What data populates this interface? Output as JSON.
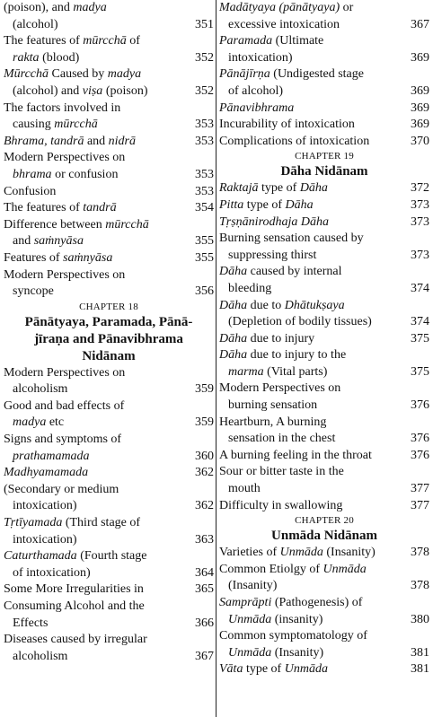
{
  "left": [
    {
      "type": "entry",
      "lines": [
        "(poison), and <i>madya</i>",
        "(alcohol)"
      ],
      "page": "351"
    },
    {
      "type": "entry",
      "lines": [
        "The features of <i>mūrcchā</i> of",
        "<i>rakta</i> (blood)"
      ],
      "page": "352"
    },
    {
      "type": "entry",
      "lines": [
        "<i>Mūrcchā</i> Caused by <i>madya</i>",
        "(alcohol) and <i>viṣa</i> (poison)"
      ],
      "page": "352"
    },
    {
      "type": "entry",
      "lines": [
        "The factors involved in",
        "causing <i>mūrcchā</i>"
      ],
      "page": "353"
    },
    {
      "type": "entry",
      "lines": [
        "<i>Bhrama, tandrā</i> and <i>nidrā</i>"
      ],
      "page": "353"
    },
    {
      "type": "entry",
      "lines": [
        "Modern Perspectives on",
        "<i>bhrama</i> or confusion"
      ],
      "page": "353"
    },
    {
      "type": "entry",
      "lines": [
        "Confusion"
      ],
      "page": "353"
    },
    {
      "type": "entry",
      "lines": [
        "The features of <i>tandrā</i>"
      ],
      "page": "354"
    },
    {
      "type": "entry",
      "lines": [
        "Difference between <i>mūrcchā</i>",
        "and <i>saṁnyāsa</i>"
      ],
      "page": "355"
    },
    {
      "type": "entry",
      "lines": [
        "Features of <i>saṁnyāsa</i>"
      ],
      "page": "355"
    },
    {
      "type": "entry",
      "lines": [
        "Modern Perspectives on",
        "syncope"
      ],
      "page": "356"
    },
    {
      "type": "heading",
      "chapter": "CHAPTER 18",
      "title": "Pānātyaya, Paramada, Pānā-<br>jīraṇa and Pānavibhrama<br>Nidānam"
    },
    {
      "type": "entry",
      "lines": [
        "Modern Perspectives on",
        "alcoholism"
      ],
      "page": "359"
    },
    {
      "type": "entry",
      "lines": [
        "Good and bad effects of",
        "<i>madya</i> etc"
      ],
      "page": "359"
    },
    {
      "type": "entry",
      "lines": [
        "Signs and symptoms of",
        "<i>prathamamada</i>"
      ],
      "page": "360"
    },
    {
      "type": "entry",
      "lines": [
        "<i>Madhyamamada</i>"
      ],
      "page": "362"
    },
    {
      "type": "entry",
      "lines": [
        "(Secondary or medium",
        "intoxication)"
      ],
      "page": "362"
    },
    {
      "type": "entry",
      "lines": [
        "<i>Tṛtīyamada</i> (Third stage of",
        "intoxication)"
      ],
      "page": "363"
    },
    {
      "type": "entry",
      "lines": [
        "<i>Caturthamada</i> (Fourth stage",
        "of intoxication)"
      ],
      "page": "364"
    },
    {
      "type": "entry",
      "lines": [
        "Some More Irregularities in"
      ],
      "page": "365"
    },
    {
      "type": "entry",
      "lines": [
        "Consuming Alcohol and the",
        "Effects"
      ],
      "page": "366"
    },
    {
      "type": "entry",
      "lines": [
        "Diseases caused by irregular",
        "alcoholism"
      ],
      "page": "367"
    }
  ],
  "right": [
    {
      "type": "entry",
      "lines": [
        "<i>Madātyaya (pānātyaya)</i> or",
        "excessive intoxication"
      ],
      "page": "367"
    },
    {
      "type": "entry",
      "lines": [
        "<i>Paramada</i> (Ultimate",
        "intoxication)"
      ],
      "page": "369"
    },
    {
      "type": "entry",
      "lines": [
        "<i>Pānājīrṇa</i> (Undigested stage",
        "of alcohol)"
      ],
      "page": "369"
    },
    {
      "type": "entry",
      "lines": [
        "<i>Pānavibhrama</i>"
      ],
      "page": "369"
    },
    {
      "type": "entry",
      "lines": [
        "Incurability of intoxication"
      ],
      "page": "369"
    },
    {
      "type": "entry",
      "lines": [
        "Complications of intoxication"
      ],
      "page": "370"
    },
    {
      "type": "heading",
      "chapter": "CHAPTER 19",
      "title": "Dāha Nidānam"
    },
    {
      "type": "entry",
      "lines": [
        "<i>Raktajā</i> type of <i>Dāha</i>"
      ],
      "page": "372"
    },
    {
      "type": "entry",
      "lines": [
        "<i>Pitta</i> type of <i>Dāha</i>"
      ],
      "page": "373"
    },
    {
      "type": "entry",
      "lines": [
        "<i>Tṛṣṇānirodhaja Dāha</i>"
      ],
      "page": "373"
    },
    {
      "type": "entry",
      "lines": [
        "Burning sensation caused by",
        "suppressing thirst"
      ],
      "page": "373"
    },
    {
      "type": "entry",
      "lines": [
        "<i>Dāha</i> caused by internal",
        "bleeding"
      ],
      "page": "374"
    },
    {
      "type": "entry",
      "lines": [
        "<i>Dāha</i> due to <i>Dhātukṣaya</i>",
        "(Depletion of bodily tissues)"
      ],
      "page": "374"
    },
    {
      "type": "entry",
      "lines": [
        "<i>Dāha</i> due to injury"
      ],
      "page": "375"
    },
    {
      "type": "entry",
      "lines": [
        "<i>Dāha</i> due to injury to the",
        "<i>marma</i> (Vital parts)"
      ],
      "page": "375"
    },
    {
      "type": "entry",
      "lines": [
        "Modern Perspectives on",
        "burning sensation"
      ],
      "page": "376"
    },
    {
      "type": "entry",
      "lines": [
        "Heartburn, A burning",
        "sensation in the chest"
      ],
      "page": "376"
    },
    {
      "type": "entry",
      "lines": [
        "A burning feeling in the throat"
      ],
      "page": "376"
    },
    {
      "type": "entry",
      "lines": [
        "Sour or bitter taste in the",
        "mouth"
      ],
      "page": "377"
    },
    {
      "type": "entry",
      "lines": [
        "Difficulty in swallowing"
      ],
      "page": "377"
    },
    {
      "type": "heading",
      "chapter": "CHAPTER 20",
      "title": "Unmāda Nidānam"
    },
    {
      "type": "entry",
      "lines": [
        "Varieties of <i>Unmāda</i> (Insanity)"
      ],
      "page": "378"
    },
    {
      "type": "entry",
      "lines": [
        "Common Etiolgy of <i>Unmāda</i>",
        "(Insanity)"
      ],
      "page": "378"
    },
    {
      "type": "entry",
      "lines": [
        "<i>Samprāpti</i> (Pathogenesis) of",
        "<i>Unmāda</i> (insanity)"
      ],
      "page": "380"
    },
    {
      "type": "entry",
      "lines": [
        "Common symptomatology of",
        "<i>Unmāda</i> (Insanity)"
      ],
      "page": "381"
    },
    {
      "type": "entry",
      "lines": [
        "<i>Vāta</i> type of <i>Unmāda</i>"
      ],
      "page": "381"
    }
  ]
}
